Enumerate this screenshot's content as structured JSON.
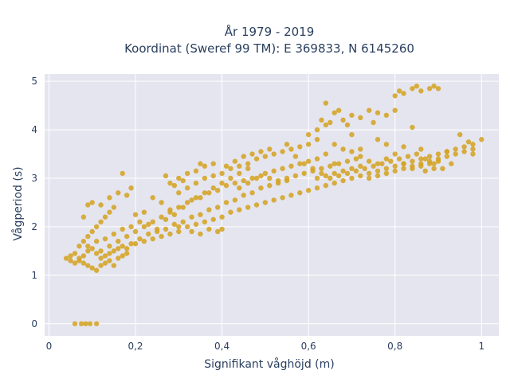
{
  "chart_data": {
    "type": "scatter",
    "title_line1": "År 1979 - 2019",
    "title_line2": "Koordinat (Sweref 99 TM): E 369833, N 6145260",
    "xlabel": "Signifikant våghöjd (m)",
    "ylabel": "Vågperiod (s)",
    "xlim": [
      -0.01,
      1.04
    ],
    "ylim": [
      -0.25,
      5.15
    ],
    "xticks": [
      {
        "value": 0,
        "label": "0"
      },
      {
        "value": 0.2,
        "label": "0,2"
      },
      {
        "value": 0.4,
        "label": "0,4"
      },
      {
        "value": 0.6,
        "label": "0,6"
      },
      {
        "value": 0.8,
        "label": "0,8"
      },
      {
        "value": 1.0,
        "label": "1"
      }
    ],
    "yticks": [
      {
        "value": 0,
        "label": "0"
      },
      {
        "value": 1,
        "label": "1"
      },
      {
        "value": 2,
        "label": "2"
      },
      {
        "value": 3,
        "label": "3"
      },
      {
        "value": 4,
        "label": "4"
      },
      {
        "value": 5,
        "label": "5"
      }
    ],
    "grid": true,
    "marker_color": "#D4A21E",
    "plot_bg": "#E5E5EF",
    "points": [
      [
        0.06,
        0.0
      ],
      [
        0.075,
        0.0
      ],
      [
        0.085,
        0.0
      ],
      [
        0.095,
        0.0
      ],
      [
        0.11,
        0.0
      ],
      [
        0.04,
        1.35
      ],
      [
        0.05,
        1.4
      ],
      [
        0.06,
        1.45
      ],
      [
        0.07,
        1.3
      ],
      [
        0.08,
        1.25
      ],
      [
        0.09,
        1.2
      ],
      [
        0.1,
        1.15
      ],
      [
        0.11,
        1.1
      ],
      [
        0.12,
        1.2
      ],
      [
        0.13,
        1.25
      ],
      [
        0.14,
        1.3
      ],
      [
        0.15,
        1.2
      ],
      [
        0.16,
        1.35
      ],
      [
        0.17,
        1.4
      ],
      [
        0.18,
        1.45
      ],
      [
        0.07,
        1.6
      ],
      [
        0.08,
        1.7
      ],
      [
        0.09,
        1.8
      ],
      [
        0.1,
        1.9
      ],
      [
        0.11,
        2.0
      ],
      [
        0.12,
        2.1
      ],
      [
        0.13,
        2.2
      ],
      [
        0.14,
        2.3
      ],
      [
        0.15,
        2.4
      ],
      [
        0.1,
        2.5
      ],
      [
        0.12,
        2.45
      ],
      [
        0.14,
        2.6
      ],
      [
        0.16,
        2.7
      ],
      [
        0.18,
        2.65
      ],
      [
        0.17,
        3.1
      ],
      [
        0.19,
        2.8
      ],
      [
        0.09,
        2.45
      ],
      [
        0.08,
        2.2
      ],
      [
        0.12,
        1.5
      ],
      [
        0.14,
        1.6
      ],
      [
        0.16,
        1.7
      ],
      [
        0.18,
        1.8
      ],
      [
        0.2,
        1.9
      ],
      [
        0.22,
        2.0
      ],
      [
        0.24,
        2.1
      ],
      [
        0.26,
        2.2
      ],
      [
        0.28,
        2.3
      ],
      [
        0.3,
        2.4
      ],
      [
        0.32,
        2.5
      ],
      [
        0.34,
        2.6
      ],
      [
        0.36,
        2.7
      ],
      [
        0.38,
        2.8
      ],
      [
        0.4,
        2.9
      ],
      [
        0.42,
        3.0
      ],
      [
        0.44,
        3.1
      ],
      [
        0.46,
        3.2
      ],
      [
        0.18,
        1.55
      ],
      [
        0.2,
        1.65
      ],
      [
        0.22,
        1.7
      ],
      [
        0.24,
        1.75
      ],
      [
        0.26,
        1.8
      ],
      [
        0.28,
        1.85
      ],
      [
        0.3,
        1.9
      ],
      [
        0.32,
        2.0
      ],
      [
        0.34,
        2.05
      ],
      [
        0.36,
        2.1
      ],
      [
        0.38,
        2.15
      ],
      [
        0.4,
        2.2
      ],
      [
        0.42,
        2.3
      ],
      [
        0.44,
        2.35
      ],
      [
        0.46,
        2.4
      ],
      [
        0.48,
        2.45
      ],
      [
        0.5,
        2.5
      ],
      [
        0.52,
        2.55
      ],
      [
        0.54,
        2.6
      ],
      [
        0.56,
        2.65
      ],
      [
        0.58,
        2.7
      ],
      [
        0.6,
        2.75
      ],
      [
        0.62,
        2.8
      ],
      [
        0.64,
        2.85
      ],
      [
        0.66,
        2.9
      ],
      [
        0.68,
        2.95
      ],
      [
        0.7,
        3.0
      ],
      [
        0.72,
        3.05
      ],
      [
        0.74,
        3.1
      ],
      [
        0.76,
        3.15
      ],
      [
        0.78,
        3.2
      ],
      [
        0.8,
        3.25
      ],
      [
        0.82,
        3.3
      ],
      [
        0.84,
        3.35
      ],
      [
        0.86,
        3.4
      ],
      [
        0.88,
        3.45
      ],
      [
        0.9,
        3.5
      ],
      [
        0.92,
        3.55
      ],
      [
        0.94,
        3.6
      ],
      [
        0.96,
        3.65
      ],
      [
        0.98,
        3.7
      ],
      [
        1.0,
        3.8
      ],
      [
        0.25,
        1.9
      ],
      [
        0.27,
        1.95
      ],
      [
        0.29,
        2.05
      ],
      [
        0.31,
        2.1
      ],
      [
        0.33,
        2.2
      ],
      [
        0.35,
        2.25
      ],
      [
        0.37,
        2.35
      ],
      [
        0.39,
        2.4
      ],
      [
        0.41,
        2.5
      ],
      [
        0.43,
        2.55
      ],
      [
        0.45,
        2.65
      ],
      [
        0.47,
        2.7
      ],
      [
        0.49,
        2.8
      ],
      [
        0.51,
        2.85
      ],
      [
        0.53,
        2.9
      ],
      [
        0.55,
        2.95
      ],
      [
        0.3,
        2.7
      ],
      [
        0.32,
        2.8
      ],
      [
        0.34,
        2.9
      ],
      [
        0.36,
        3.0
      ],
      [
        0.38,
        3.05
      ],
      [
        0.4,
        3.1
      ],
      [
        0.42,
        3.2
      ],
      [
        0.44,
        3.25
      ],
      [
        0.46,
        3.3
      ],
      [
        0.48,
        3.4
      ],
      [
        0.5,
        3.45
      ],
      [
        0.52,
        3.5
      ],
      [
        0.54,
        3.55
      ],
      [
        0.56,
        3.6
      ],
      [
        0.58,
        3.65
      ],
      [
        0.6,
        3.7
      ],
      [
        0.62,
        3.4
      ],
      [
        0.64,
        3.5
      ],
      [
        0.66,
        3.3
      ],
      [
        0.68,
        3.6
      ],
      [
        0.7,
        3.55
      ],
      [
        0.72,
        3.45
      ],
      [
        0.74,
        3.35
      ],
      [
        0.76,
        3.3
      ],
      [
        0.78,
        3.4
      ],
      [
        0.8,
        3.5
      ],
      [
        0.82,
        3.3
      ],
      [
        0.84,
        3.2
      ],
      [
        0.86,
        3.25
      ],
      [
        0.88,
        3.3
      ],
      [
        0.9,
        3.35
      ],
      [
        0.62,
        4.0
      ],
      [
        0.63,
        4.2
      ],
      [
        0.64,
        4.1
      ],
      [
        0.65,
        4.15
      ],
      [
        0.66,
        4.35
      ],
      [
        0.67,
        4.4
      ],
      [
        0.68,
        4.2
      ],
      [
        0.69,
        4.1
      ],
      [
        0.7,
        4.3
      ],
      [
        0.72,
        4.25
      ],
      [
        0.74,
        4.4
      ],
      [
        0.75,
        4.15
      ],
      [
        0.76,
        4.35
      ],
      [
        0.78,
        4.3
      ],
      [
        0.8,
        4.7
      ],
      [
        0.81,
        4.8
      ],
      [
        0.82,
        4.75
      ],
      [
        0.84,
        4.85
      ],
      [
        0.85,
        4.9
      ],
      [
        0.86,
        4.8
      ],
      [
        0.88,
        4.85
      ],
      [
        0.89,
        4.9
      ],
      [
        0.9,
        4.85
      ],
      [
        0.8,
        4.4
      ],
      [
        0.84,
        4.05
      ],
      [
        0.64,
        4.55
      ],
      [
        0.6,
        3.9
      ],
      [
        0.62,
        3.8
      ],
      [
        0.66,
        3.7
      ],
      [
        0.7,
        3.9
      ],
      [
        0.72,
        3.6
      ],
      [
        0.76,
        3.8
      ],
      [
        0.78,
        3.7
      ],
      [
        0.82,
        3.65
      ],
      [
        0.86,
        3.6
      ],
      [
        0.92,
        3.55
      ],
      [
        0.95,
        3.9
      ],
      [
        0.97,
        3.75
      ],
      [
        0.98,
        3.6
      ],
      [
        0.93,
        3.3
      ],
      [
        0.91,
        3.2
      ],
      [
        0.89,
        3.2
      ],
      [
        0.87,
        3.15
      ],
      [
        0.4,
        1.95
      ],
      [
        0.39,
        1.9
      ],
      [
        0.37,
        1.95
      ],
      [
        0.35,
        1.85
      ],
      [
        0.33,
        1.9
      ],
      [
        0.3,
        2.0
      ],
      [
        0.28,
        2.35
      ],
      [
        0.26,
        2.5
      ],
      [
        0.24,
        2.6
      ],
      [
        0.22,
        2.3
      ],
      [
        0.2,
        2.25
      ],
      [
        0.21,
        2.1
      ],
      [
        0.23,
        2.05
      ],
      [
        0.19,
        2.0
      ],
      [
        0.17,
        1.95
      ],
      [
        0.15,
        1.85
      ],
      [
        0.13,
        1.75
      ],
      [
        0.11,
        1.7
      ],
      [
        0.09,
        1.6
      ],
      [
        0.36,
        3.25
      ],
      [
        0.34,
        3.15
      ],
      [
        0.32,
        3.1
      ],
      [
        0.3,
        3.0
      ],
      [
        0.28,
        2.9
      ],
      [
        0.27,
        3.05
      ],
      [
        0.29,
        2.85
      ],
      [
        0.31,
        2.95
      ],
      [
        0.35,
        3.3
      ],
      [
        0.38,
        3.3
      ],
      [
        0.41,
        3.25
      ],
      [
        0.43,
        3.35
      ],
      [
        0.45,
        3.45
      ],
      [
        0.47,
        3.5
      ],
      [
        0.49,
        3.55
      ],
      [
        0.51,
        3.6
      ],
      [
        0.55,
        3.7
      ],
      [
        0.57,
        3.45
      ],
      [
        0.59,
        3.3
      ],
      [
        0.61,
        3.2
      ],
      [
        0.63,
        3.1
      ],
      [
        0.65,
        3.0
      ],
      [
        0.67,
        3.05
      ],
      [
        0.69,
        3.1
      ],
      [
        0.71,
        3.15
      ],
      [
        0.73,
        3.2
      ],
      [
        0.75,
        3.25
      ],
      [
        0.77,
        3.3
      ],
      [
        0.79,
        3.35
      ],
      [
        0.81,
        3.4
      ],
      [
        0.83,
        3.45
      ],
      [
        0.85,
        3.5
      ],
      [
        0.87,
        3.4
      ],
      [
        0.89,
        3.3
      ],
      [
        0.44,
        2.8
      ],
      [
        0.46,
        2.9
      ],
      [
        0.48,
        3.0
      ],
      [
        0.5,
        3.1
      ],
      [
        0.52,
        3.15
      ],
      [
        0.54,
        3.2
      ],
      [
        0.56,
        3.25
      ],
      [
        0.58,
        3.3
      ],
      [
        0.6,
        3.35
      ],
      [
        0.62,
        3.0
      ],
      [
        0.64,
        3.05
      ],
      [
        0.66,
        3.1
      ],
      [
        0.68,
        3.15
      ],
      [
        0.7,
        3.2
      ],
      [
        0.72,
        3.25
      ],
      [
        0.74,
        3.0
      ],
      [
        0.76,
        3.05
      ],
      [
        0.78,
        3.1
      ],
      [
        0.8,
        3.15
      ],
      [
        0.82,
        3.2
      ],
      [
        0.84,
        3.25
      ],
      [
        0.86,
        3.3
      ],
      [
        0.88,
        3.35
      ],
      [
        0.9,
        3.4
      ],
      [
        0.92,
        3.45
      ],
      [
        0.94,
        3.5
      ],
      [
        0.96,
        3.55
      ],
      [
        0.98,
        3.5
      ],
      [
        0.05,
        1.3
      ],
      [
        0.06,
        1.25
      ],
      [
        0.07,
        1.35
      ],
      [
        0.08,
        1.4
      ],
      [
        0.09,
        1.5
      ],
      [
        0.1,
        1.55
      ],
      [
        0.11,
        1.45
      ],
      [
        0.12,
        1.35
      ],
      [
        0.13,
        1.4
      ],
      [
        0.14,
        1.45
      ],
      [
        0.15,
        1.5
      ],
      [
        0.16,
        1.55
      ],
      [
        0.17,
        1.6
      ],
      [
        0.19,
        1.65
      ],
      [
        0.21,
        1.75
      ],
      [
        0.23,
        1.85
      ],
      [
        0.25,
        1.95
      ],
      [
        0.27,
        2.15
      ],
      [
        0.29,
        2.25
      ],
      [
        0.31,
        2.4
      ],
      [
        0.33,
        2.55
      ],
      [
        0.35,
        2.6
      ],
      [
        0.37,
        2.7
      ],
      [
        0.39,
        2.75
      ],
      [
        0.41,
        2.85
      ],
      [
        0.43,
        2.9
      ],
      [
        0.45,
        2.95
      ],
      [
        0.47,
        3.0
      ],
      [
        0.49,
        3.05
      ],
      [
        0.51,
        3.0
      ],
      [
        0.53,
        2.95
      ],
      [
        0.55,
        3.0
      ],
      [
        0.57,
        3.05
      ],
      [
        0.59,
        3.1
      ],
      [
        0.61,
        3.15
      ],
      [
        0.63,
        3.2
      ],
      [
        0.65,
        3.25
      ],
      [
        0.67,
        3.3
      ],
      [
        0.69,
        3.35
      ],
      [
        0.71,
        3.4
      ]
    ]
  }
}
